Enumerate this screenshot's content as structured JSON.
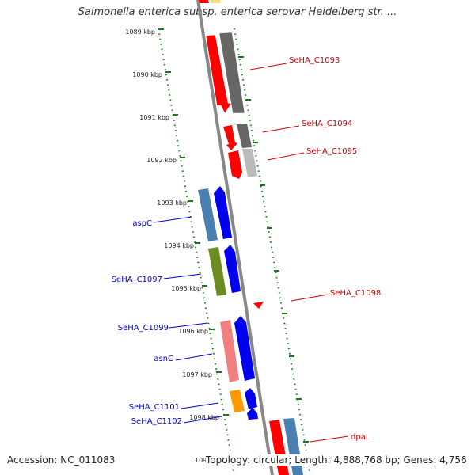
{
  "title": "Salmonella enterica subsp. enterica serovar Heidelberg str. ...",
  "footer": {
    "accession": "Accession: NC_011083",
    "topology": "Topology: circular; Length: 4,888,768 bp; Genes: 4,756"
  },
  "ruler": {
    "ticks": [
      "1089 kbp",
      "1090 kbp",
      "1091 kbp",
      "1092 kbp",
      "1093 kbp",
      "1094 kbp",
      "1095 kbp",
      "1096 kbp",
      "1097 kbp",
      "1098 kbp",
      "109"
    ]
  },
  "genes": {
    "right_labels": [
      "SeHA_C1093",
      "SeHA_C1094",
      "SeHA_C1095",
      "SeHA_C1098",
      "dpaL"
    ],
    "left_labels": [
      "aspC",
      "SeHA_C1097",
      "SeHA_C1099",
      "asnC",
      "SeHA_C1101",
      "SeHA_C1102"
    ]
  },
  "colors": {
    "red": "#ff0000",
    "blue": "#0000ee",
    "dark_gray": "#666666",
    "light_gray": "#bbbbbb",
    "steel_blue": "#4a7fb0",
    "olive": "#6b8c21",
    "pink": "#f08080",
    "orange": "#ff9900",
    "tick_green": "#1a7a1a"
  }
}
